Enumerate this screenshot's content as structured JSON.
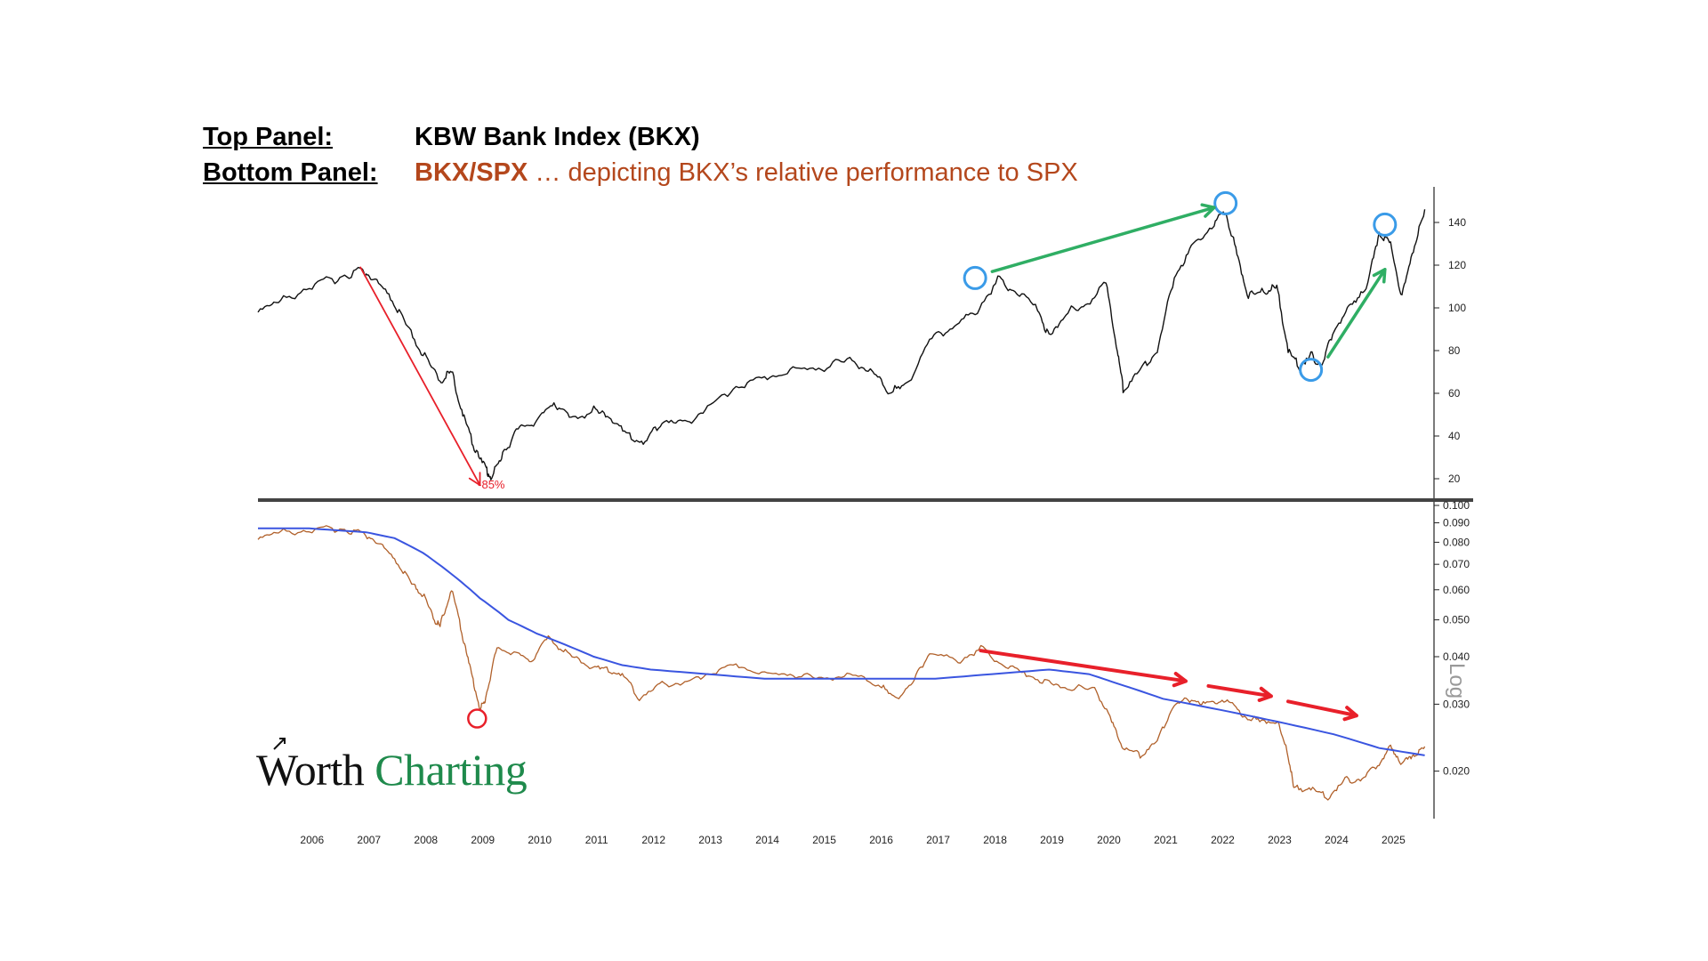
{
  "header": {
    "top_label": "Top Panel:",
    "top_value": "KBW Bank Index (BKX)",
    "bottom_label": "Bottom Panel:",
    "bottom_value_bold": "BKX/SPX",
    "bottom_value_rest": " … depicting BKX’s relative performance to SPX"
  },
  "logo": {
    "word1": "Worth",
    "word2": "Charting"
  },
  "colors": {
    "price": "#111111",
    "ratio": "#b0602a",
    "moving_average": "#3a55e0",
    "red_annotation": "#e8202a",
    "green_annotation": "#2fae64",
    "circle_blue": "#3a9be8"
  },
  "chart_data": [
    {
      "type": "line",
      "series": [
        {
          "values": [
            {
              "x": 2005.1,
              "y": 100
            },
            {
              "x": 2005.5,
              "y": 103
            },
            {
              "x": 2006.0,
              "y": 110
            },
            {
              "x": 2006.5,
              "y": 114
            },
            {
              "x": 2006.9,
              "y": 118
            },
            {
              "x": 2007.1,
              "y": 114
            },
            {
              "x": 2007.4,
              "y": 106
            },
            {
              "x": 2007.7,
              "y": 92
            },
            {
              "x": 2008.0,
              "y": 78
            },
            {
              "x": 2008.3,
              "y": 66
            },
            {
              "x": 2008.5,
              "y": 70
            },
            {
              "x": 2008.7,
              "y": 50
            },
            {
              "x": 2008.9,
              "y": 35
            },
            {
              "x": 2009.1,
              "y": 25
            },
            {
              "x": 2009.2,
              "y": 20
            },
            {
              "x": 2009.4,
              "y": 32
            },
            {
              "x": 2009.7,
              "y": 44
            },
            {
              "x": 2010.0,
              "y": 47
            },
            {
              "x": 2010.3,
              "y": 56
            },
            {
              "x": 2010.6,
              "y": 48
            },
            {
              "x": 2011.0,
              "y": 52
            },
            {
              "x": 2011.3,
              "y": 49
            },
            {
              "x": 2011.6,
              "y": 40
            },
            {
              "x": 2011.9,
              "y": 37
            },
            {
              "x": 2012.2,
              "y": 47
            },
            {
              "x": 2012.6,
              "y": 46
            },
            {
              "x": 2013.0,
              "y": 53
            },
            {
              "x": 2013.5,
              "y": 63
            },
            {
              "x": 2014.0,
              "y": 67
            },
            {
              "x": 2014.5,
              "y": 71
            },
            {
              "x": 2015.0,
              "y": 72
            },
            {
              "x": 2015.5,
              "y": 76
            },
            {
              "x": 2015.9,
              "y": 70
            },
            {
              "x": 2016.2,
              "y": 61
            },
            {
              "x": 2016.5,
              "y": 64
            },
            {
              "x": 2016.9,
              "y": 85
            },
            {
              "x": 2017.3,
              "y": 91
            },
            {
              "x": 2017.7,
              "y": 98
            },
            {
              "x": 2018.1,
              "y": 113
            },
            {
              "x": 2018.4,
              "y": 108
            },
            {
              "x": 2018.8,
              "y": 100
            },
            {
              "x": 2019.0,
              "y": 86
            },
            {
              "x": 2019.3,
              "y": 98
            },
            {
              "x": 2019.6,
              "y": 100
            },
            {
              "x": 2020.0,
              "y": 112
            },
            {
              "x": 2020.2,
              "y": 80
            },
            {
              "x": 2020.3,
              "y": 62
            },
            {
              "x": 2020.6,
              "y": 71
            },
            {
              "x": 2020.9,
              "y": 80
            },
            {
              "x": 2021.2,
              "y": 115
            },
            {
              "x": 2021.5,
              "y": 128
            },
            {
              "x": 2021.9,
              "y": 140
            },
            {
              "x": 2022.1,
              "y": 145
            },
            {
              "x": 2022.3,
              "y": 125
            },
            {
              "x": 2022.5,
              "y": 105
            },
            {
              "x": 2022.8,
              "y": 108
            },
            {
              "x": 2023.0,
              "y": 110
            },
            {
              "x": 2023.2,
              "y": 80
            },
            {
              "x": 2023.4,
              "y": 72
            },
            {
              "x": 2023.6,
              "y": 78
            },
            {
              "x": 2023.8,
              "y": 73
            },
            {
              "x": 2024.0,
              "y": 90
            },
            {
              "x": 2024.3,
              "y": 100
            },
            {
              "x": 2024.6,
              "y": 112
            },
            {
              "x": 2024.8,
              "y": 135
            },
            {
              "x": 2025.0,
              "y": 130
            },
            {
              "x": 2025.2,
              "y": 105
            },
            {
              "x": 2025.4,
              "y": 128
            },
            {
              "x": 2025.6,
              "y": 145
            }
          ]
        }
      ],
      "xlim": [
        2005.1,
        2025.7
      ],
      "ylim": [
        10,
        155
      ],
      "yticks": [
        20,
        40,
        60,
        80,
        100,
        120,
        140
      ],
      "annotations": [
        "-85%"
      ]
    },
    {
      "type": "line",
      "log_scale": true,
      "series": [
        {
          "values": [
            {
              "x": 2005.1,
              "y": 0.083
            },
            {
              "x": 2005.5,
              "y": 0.085
            },
            {
              "x": 2006.0,
              "y": 0.086
            },
            {
              "x": 2006.5,
              "y": 0.087
            },
            {
              "x": 2006.9,
              "y": 0.085
            },
            {
              "x": 2007.2,
              "y": 0.08
            },
            {
              "x": 2007.5,
              "y": 0.072
            },
            {
              "x": 2007.8,
              "y": 0.062
            },
            {
              "x": 2008.0,
              "y": 0.058
            },
            {
              "x": 2008.2,
              "y": 0.05
            },
            {
              "x": 2008.3,
              "y": 0.048
            },
            {
              "x": 2008.5,
              "y": 0.06
            },
            {
              "x": 2008.7,
              "y": 0.045
            },
            {
              "x": 2008.85,
              "y": 0.036
            },
            {
              "x": 2009.0,
              "y": 0.029
            },
            {
              "x": 2009.1,
              "y": 0.031
            },
            {
              "x": 2009.3,
              "y": 0.042
            },
            {
              "x": 2009.6,
              "y": 0.041
            },
            {
              "x": 2009.9,
              "y": 0.039
            },
            {
              "x": 2010.2,
              "y": 0.045
            },
            {
              "x": 2010.5,
              "y": 0.041
            },
            {
              "x": 2010.9,
              "y": 0.038
            },
            {
              "x": 2011.2,
              "y": 0.037
            },
            {
              "x": 2011.5,
              "y": 0.036
            },
            {
              "x": 2011.8,
              "y": 0.031
            },
            {
              "x": 2012.2,
              "y": 0.034
            },
            {
              "x": 2012.6,
              "y": 0.034
            },
            {
              "x": 2013.0,
              "y": 0.036
            },
            {
              "x": 2013.5,
              "y": 0.038
            },
            {
              "x": 2014.0,
              "y": 0.036
            },
            {
              "x": 2014.5,
              "y": 0.036
            },
            {
              "x": 2015.0,
              "y": 0.035
            },
            {
              "x": 2015.5,
              "y": 0.036
            },
            {
              "x": 2016.0,
              "y": 0.034
            },
            {
              "x": 2016.3,
              "y": 0.031
            },
            {
              "x": 2016.6,
              "y": 0.034
            },
            {
              "x": 2016.9,
              "y": 0.041
            },
            {
              "x": 2017.4,
              "y": 0.039
            },
            {
              "x": 2017.8,
              "y": 0.042
            },
            {
              "x": 2018.2,
              "y": 0.038
            },
            {
              "x": 2018.6,
              "y": 0.036
            },
            {
              "x": 2019.0,
              "y": 0.034
            },
            {
              "x": 2019.4,
              "y": 0.033
            },
            {
              "x": 2019.8,
              "y": 0.033
            },
            {
              "x": 2020.1,
              "y": 0.027
            },
            {
              "x": 2020.3,
              "y": 0.023
            },
            {
              "x": 2020.6,
              "y": 0.022
            },
            {
              "x": 2020.9,
              "y": 0.024
            },
            {
              "x": 2021.2,
              "y": 0.03
            },
            {
              "x": 2021.5,
              "y": 0.031
            },
            {
              "x": 2021.8,
              "y": 0.03
            },
            {
              "x": 2022.1,
              "y": 0.031
            },
            {
              "x": 2022.4,
              "y": 0.028
            },
            {
              "x": 2022.7,
              "y": 0.027
            },
            {
              "x": 2023.0,
              "y": 0.027
            },
            {
              "x": 2023.2,
              "y": 0.022
            },
            {
              "x": 2023.3,
              "y": 0.018
            },
            {
              "x": 2023.6,
              "y": 0.018
            },
            {
              "x": 2023.9,
              "y": 0.017
            },
            {
              "x": 2024.2,
              "y": 0.019
            },
            {
              "x": 2024.5,
              "y": 0.019
            },
            {
              "x": 2024.8,
              "y": 0.021
            },
            {
              "x": 2025.0,
              "y": 0.023
            },
            {
              "x": 2025.2,
              "y": 0.021
            },
            {
              "x": 2025.4,
              "y": 0.022
            },
            {
              "x": 2025.6,
              "y": 0.023
            }
          ]
        },
        {
          "values": [
            {
              "x": 2005.1,
              "y": 0.087
            },
            {
              "x": 2006.0,
              "y": 0.087
            },
            {
              "x": 2007.0,
              "y": 0.085
            },
            {
              "x": 2007.5,
              "y": 0.082
            },
            {
              "x": 2008.0,
              "y": 0.075
            },
            {
              "x": 2008.5,
              "y": 0.066
            },
            {
              "x": 2009.0,
              "y": 0.057
            },
            {
              "x": 2009.5,
              "y": 0.05
            },
            {
              "x": 2010.0,
              "y": 0.046
            },
            {
              "x": 2010.5,
              "y": 0.043
            },
            {
              "x": 2011.0,
              "y": 0.04
            },
            {
              "x": 2011.5,
              "y": 0.038
            },
            {
              "x": 2012.0,
              "y": 0.037
            },
            {
              "x": 2013.0,
              "y": 0.036
            },
            {
              "x": 2014.0,
              "y": 0.035
            },
            {
              "x": 2015.0,
              "y": 0.035
            },
            {
              "x": 2016.0,
              "y": 0.035
            },
            {
              "x": 2017.0,
              "y": 0.035
            },
            {
              "x": 2018.0,
              "y": 0.036
            },
            {
              "x": 2019.0,
              "y": 0.037
            },
            {
              "x": 2019.7,
              "y": 0.036
            },
            {
              "x": 2020.2,
              "y": 0.034
            },
            {
              "x": 2021.0,
              "y": 0.031
            },
            {
              "x": 2022.0,
              "y": 0.029
            },
            {
              "x": 2023.0,
              "y": 0.027
            },
            {
              "x": 2024.0,
              "y": 0.025
            },
            {
              "x": 2024.8,
              "y": 0.023
            },
            {
              "x": 2025.6,
              "y": 0.022
            }
          ]
        }
      ],
      "xlim": [
        2005.1,
        2025.7
      ],
      "ylim": [
        0.015,
        0.1
      ],
      "yticks": [
        0.02,
        0.03,
        0.04,
        0.05,
        0.06,
        0.07,
        0.08,
        0.09,
        0.1
      ],
      "ytick_labels": [
        "0.020",
        "0.030",
        "0.040",
        "0.050",
        "0.060",
        "0.070",
        "0.080",
        "0.090",
        "0.100"
      ],
      "axis_note": "Log"
    }
  ],
  "x_axis": {
    "ticks": [
      2006,
      2007,
      2008,
      2009,
      2010,
      2011,
      2012,
      2013,
      2014,
      2015,
      2016,
      2017,
      2018,
      2019,
      2020,
      2021,
      2022,
      2023,
      2024,
      2025
    ],
    "labels": [
      "2006",
      "2007",
      "2008",
      "2009",
      "2010",
      "2011",
      "2012",
      "2013",
      "2014",
      "2015",
      "2016",
      "2017",
      "2018",
      "2019",
      "2020",
      "2021",
      "2022",
      "2023",
      "2024",
      "2025"
    ]
  }
}
